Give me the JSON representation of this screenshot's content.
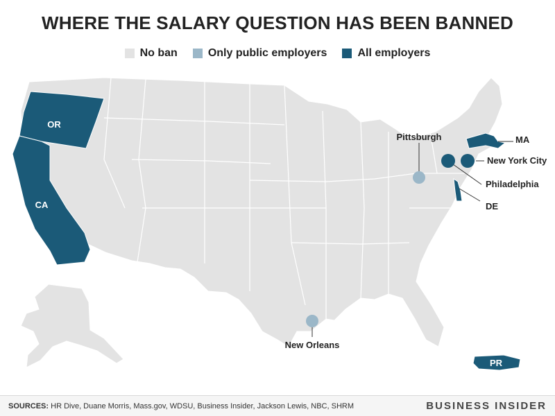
{
  "title": "WHERE THE SALARY QUESTION HAS BEEN BANNED",
  "legend": [
    {
      "label": "No ban",
      "color": "#e3e3e3"
    },
    {
      "label": "Only public employers",
      "color": "#9bb7c8"
    },
    {
      "label": "All employers",
      "color": "#1b5a78"
    }
  ],
  "colors": {
    "no_ban": "#e3e3e3",
    "public": "#9bb7c8",
    "all": "#1b5a78",
    "border": "#ffffff"
  },
  "regions": {
    "or": {
      "label": "OR",
      "category": "All employers"
    },
    "ca": {
      "label": "CA",
      "category": "All employers"
    },
    "ma": {
      "label": "MA",
      "category": "All employers"
    },
    "de": {
      "label": "DE",
      "category": "All employers"
    },
    "pr": {
      "label": "PR",
      "category": "All employers"
    }
  },
  "cities": {
    "pittsburgh": {
      "label": "Pittsburgh",
      "category": "Only public employers"
    },
    "new_orleans": {
      "label": "New Orleans",
      "category": "Only public employers"
    },
    "philadelphia": {
      "label": "Philadelphia",
      "category": "All employers"
    },
    "new_york_city": {
      "label": "New York City",
      "category": "All employers"
    }
  },
  "footer": {
    "sources_label": "SOURCES:",
    "sources_text": "HR Dive, Duane Morris, Mass.gov, WDSU, Business Insider, Jackson Lewis, NBC, SHRM",
    "brand": "BUSINESS INSIDER"
  }
}
